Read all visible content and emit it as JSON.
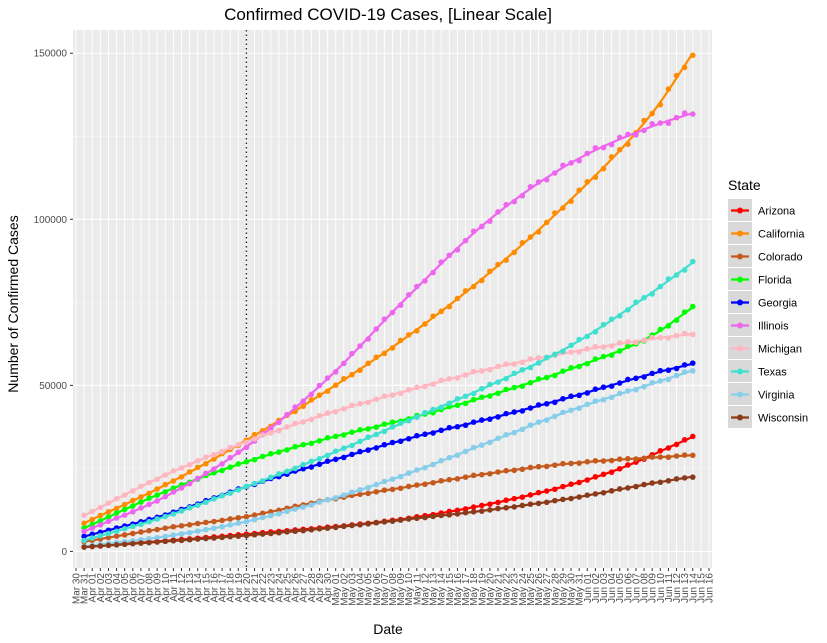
{
  "chart_data": {
    "type": "line",
    "title": "Confirmed COVID-19 Cases, [Linear Scale]",
    "xlabel": "Date",
    "ylabel": "Number of Confirmed Cases",
    "x_ticks": [
      "Mar 30",
      "Mar 31",
      "Apr 01",
      "Apr 02",
      "Apr 03",
      "Apr 04",
      "Apr 05",
      "Apr 06",
      "Apr 07",
      "Apr 08",
      "Apr 09",
      "Apr 10",
      "Apr 11",
      "Apr 12",
      "Apr 13",
      "Apr 14",
      "Apr 15",
      "Apr 16",
      "Apr 17",
      "Apr 18",
      "Apr 19",
      "Apr 20",
      "Apr 21",
      "Apr 22",
      "Apr 23",
      "Apr 24",
      "Apr 25",
      "Apr 26",
      "Apr 27",
      "Apr 28",
      "Apr 29",
      "Apr 30",
      "May 01",
      "May 02",
      "May 03",
      "May 04",
      "May 05",
      "May 06",
      "May 07",
      "May 08",
      "May 09",
      "May 10",
      "May 11",
      "May 12",
      "May 13",
      "May 14",
      "May 15",
      "May 16",
      "May 17",
      "May 18",
      "May 19",
      "May 20",
      "May 21",
      "May 22",
      "May 23",
      "May 24",
      "May 25",
      "May 26",
      "May 27",
      "May 28",
      "May 29",
      "May 30",
      "May 31",
      "Jun 01",
      "Jun 02",
      "Jun 03",
      "Jun 04",
      "Jun 05",
      "Jun 06",
      "Jun 07",
      "Jun 08",
      "Jun 09",
      "Jun 10",
      "Jun 11",
      "Jun 12",
      "Jun 13",
      "Jun 14",
      "Jun 15",
      "Jun 16"
    ],
    "x_start_label": "Mar 31",
    "x_end_label": "Jun 13",
    "reference_line_at": "Apr 20",
    "y_ticks": [
      0,
      50000,
      100000,
      150000
    ],
    "y_tick_labels": [
      "0",
      "50000",
      "100000",
      "150000"
    ],
    "ylim": [
      -5000,
      157000
    ],
    "grid": true,
    "legend": {
      "title": "State",
      "position": "right"
    },
    "series": [
      {
        "name": "Arizona",
        "color": "#ff0000",
        "anchors": [
          [
            0,
            1300
          ],
          [
            20,
            5200
          ],
          [
            40,
            10000
          ],
          [
            55,
            17000
          ],
          [
            65,
            24000
          ],
          [
            75,
            34500
          ]
        ]
      },
      {
        "name": "California",
        "color": "#ff8c00",
        "anchors": [
          [
            0,
            8500
          ],
          [
            10,
            20000
          ],
          [
            20,
            33500
          ],
          [
            30,
            48500
          ],
          [
            40,
            65000
          ],
          [
            50,
            84000
          ],
          [
            60,
            106000
          ],
          [
            70,
            132000
          ],
          [
            75,
            150000
          ]
        ]
      },
      {
        "name": "Colorado",
        "color": "#c45a1e",
        "anchors": [
          [
            0,
            2900
          ],
          [
            10,
            7000
          ],
          [
            20,
            10500
          ],
          [
            30,
            15500
          ],
          [
            40,
            19500
          ],
          [
            50,
            23500
          ],
          [
            60,
            26500
          ],
          [
            75,
            29000
          ]
        ]
      },
      {
        "name": "Florida",
        "color": "#00ff00",
        "anchors": [
          [
            0,
            7000
          ],
          [
            10,
            18000
          ],
          [
            20,
            27000
          ],
          [
            30,
            34000
          ],
          [
            40,
            40000
          ],
          [
            50,
            47000
          ],
          [
            60,
            55000
          ],
          [
            70,
            65000
          ],
          [
            75,
            73500
          ]
        ]
      },
      {
        "name": "Georgia",
        "color": "#0000ff",
        "anchors": [
          [
            0,
            4500
          ],
          [
            10,
            11000
          ],
          [
            20,
            19500
          ],
          [
            30,
            27000
          ],
          [
            40,
            34000
          ],
          [
            50,
            40000
          ],
          [
            60,
            46500
          ],
          [
            70,
            53500
          ],
          [
            75,
            56500
          ]
        ]
      },
      {
        "name": "Illinois",
        "color": "#ee66ee",
        "anchors": [
          [
            0,
            6000
          ],
          [
            10,
            16500
          ],
          [
            20,
            31500
          ],
          [
            30,
            52000
          ],
          [
            40,
            77000
          ],
          [
            50,
            100000
          ],
          [
            60,
            117000
          ],
          [
            70,
            128000
          ],
          [
            75,
            132000
          ]
        ]
      },
      {
        "name": "Michigan",
        "color": "#ffb6c1",
        "anchors": [
          [
            0,
            10800
          ],
          [
            10,
            23000
          ],
          [
            20,
            33000
          ],
          [
            30,
            41500
          ],
          [
            40,
            48500
          ],
          [
            50,
            55000
          ],
          [
            60,
            60000
          ],
          [
            70,
            64000
          ],
          [
            75,
            65500
          ]
        ]
      },
      {
        "name": "Texas",
        "color": "#40e0d0",
        "anchors": [
          [
            0,
            3300
          ],
          [
            10,
            10500
          ],
          [
            20,
            19500
          ],
          [
            30,
            29000
          ],
          [
            40,
            39500
          ],
          [
            50,
            50000
          ],
          [
            60,
            62000
          ],
          [
            70,
            78000
          ],
          [
            75,
            87000
          ]
        ]
      },
      {
        "name": "Virginia",
        "color": "#87ceeb",
        "anchors": [
          [
            0,
            1500
          ],
          [
            10,
            4500
          ],
          [
            20,
            9000
          ],
          [
            30,
            15500
          ],
          [
            40,
            23500
          ],
          [
            50,
            33000
          ],
          [
            60,
            42500
          ],
          [
            70,
            50500
          ],
          [
            75,
            54500
          ]
        ]
      },
      {
        "name": "Wisconsin",
        "color": "#8b3a1a",
        "anchors": [
          [
            0,
            1300
          ],
          [
            10,
            3000
          ],
          [
            20,
            4800
          ],
          [
            30,
            7000
          ],
          [
            40,
            9700
          ],
          [
            50,
            12500
          ],
          [
            60,
            16000
          ],
          [
            70,
            20500
          ],
          [
            75,
            22500
          ]
        ]
      }
    ]
  }
}
